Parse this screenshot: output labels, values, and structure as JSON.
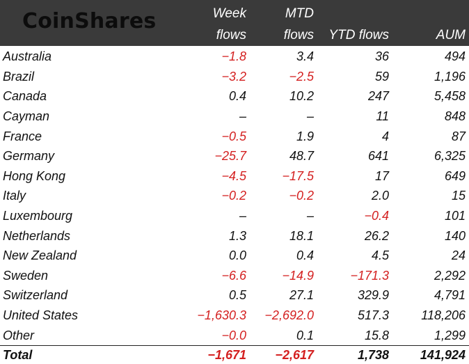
{
  "brand": "CoinShares",
  "colors": {
    "header_bg": "#3a3a3a",
    "negative": "#d42020"
  },
  "headers": {
    "week_line1": "Week",
    "week_line2": "flows",
    "mtd_line1": "MTD",
    "mtd_line2": "flows",
    "ytd": "YTD flows",
    "aum": "AUM"
  },
  "rows": [
    {
      "name": "Australia",
      "week": "-1.8",
      "week_neg": true,
      "mtd": "3.4",
      "mtd_neg": false,
      "ytd": "36",
      "ytd_neg": false,
      "aum": "494"
    },
    {
      "name": "Brazil",
      "week": "-3.2",
      "week_neg": true,
      "mtd": "-2.5",
      "mtd_neg": true,
      "ytd": "59",
      "ytd_neg": false,
      "aum": "1,196"
    },
    {
      "name": "Canada",
      "week": "0.4",
      "week_neg": false,
      "mtd": "10.2",
      "mtd_neg": false,
      "ytd": "247",
      "ytd_neg": false,
      "aum": "5,458"
    },
    {
      "name": "Cayman",
      "week": "-",
      "week_neg": false,
      "mtd": "-",
      "mtd_neg": false,
      "ytd": "11",
      "ytd_neg": false,
      "aum": "848"
    },
    {
      "name": "France",
      "week": "-0.5",
      "week_neg": true,
      "mtd": "1.9",
      "mtd_neg": false,
      "ytd": "4",
      "ytd_neg": false,
      "aum": "87"
    },
    {
      "name": "Germany",
      "week": "-25.7",
      "week_neg": true,
      "mtd": "48.7",
      "mtd_neg": false,
      "ytd": "641",
      "ytd_neg": false,
      "aum": "6,325"
    },
    {
      "name": "Hong Kong",
      "week": "-4.5",
      "week_neg": true,
      "mtd": "-17.5",
      "mtd_neg": true,
      "ytd": "17",
      "ytd_neg": false,
      "aum": "649"
    },
    {
      "name": "Italy",
      "week": "-0.2",
      "week_neg": true,
      "mtd": "-0.2",
      "mtd_neg": true,
      "ytd": "2.0",
      "ytd_neg": false,
      "aum": "15"
    },
    {
      "name": "Luxembourg",
      "week": "-",
      "week_neg": false,
      "mtd": "-",
      "mtd_neg": false,
      "ytd": "-0.4",
      "ytd_neg": true,
      "aum": "101"
    },
    {
      "name": "Netherlands",
      "week": "1.3",
      "week_neg": false,
      "mtd": "18.1",
      "mtd_neg": false,
      "ytd": "26.2",
      "ytd_neg": false,
      "aum": "140"
    },
    {
      "name": "New Zealand",
      "week": "0.0",
      "week_neg": false,
      "mtd": "0.4",
      "mtd_neg": false,
      "ytd": "4.5",
      "ytd_neg": false,
      "aum": "24"
    },
    {
      "name": "Sweden",
      "week": "-6.6",
      "week_neg": true,
      "mtd": "-14.9",
      "mtd_neg": true,
      "ytd": "-171.3",
      "ytd_neg": true,
      "aum": "2,292"
    },
    {
      "name": "Switzerland",
      "week": "0.5",
      "week_neg": false,
      "mtd": "27.1",
      "mtd_neg": false,
      "ytd": "329.9",
      "ytd_neg": false,
      "aum": "4,791"
    },
    {
      "name": "United States",
      "week": "-1,630.3",
      "week_neg": true,
      "mtd": "-2,692.0",
      "mtd_neg": true,
      "ytd": "517.3",
      "ytd_neg": false,
      "aum": "118,206"
    },
    {
      "name": "Other",
      "week": "-0.0",
      "week_neg": true,
      "mtd": "0.1",
      "mtd_neg": false,
      "ytd": "15.8",
      "ytd_neg": false,
      "aum": "1,299"
    }
  ],
  "total": {
    "name": "Total",
    "week": "-1,671",
    "week_neg": true,
    "mtd": "-2,617",
    "mtd_neg": true,
    "ytd": "1,738",
    "ytd_neg": false,
    "aum": "141,924"
  }
}
